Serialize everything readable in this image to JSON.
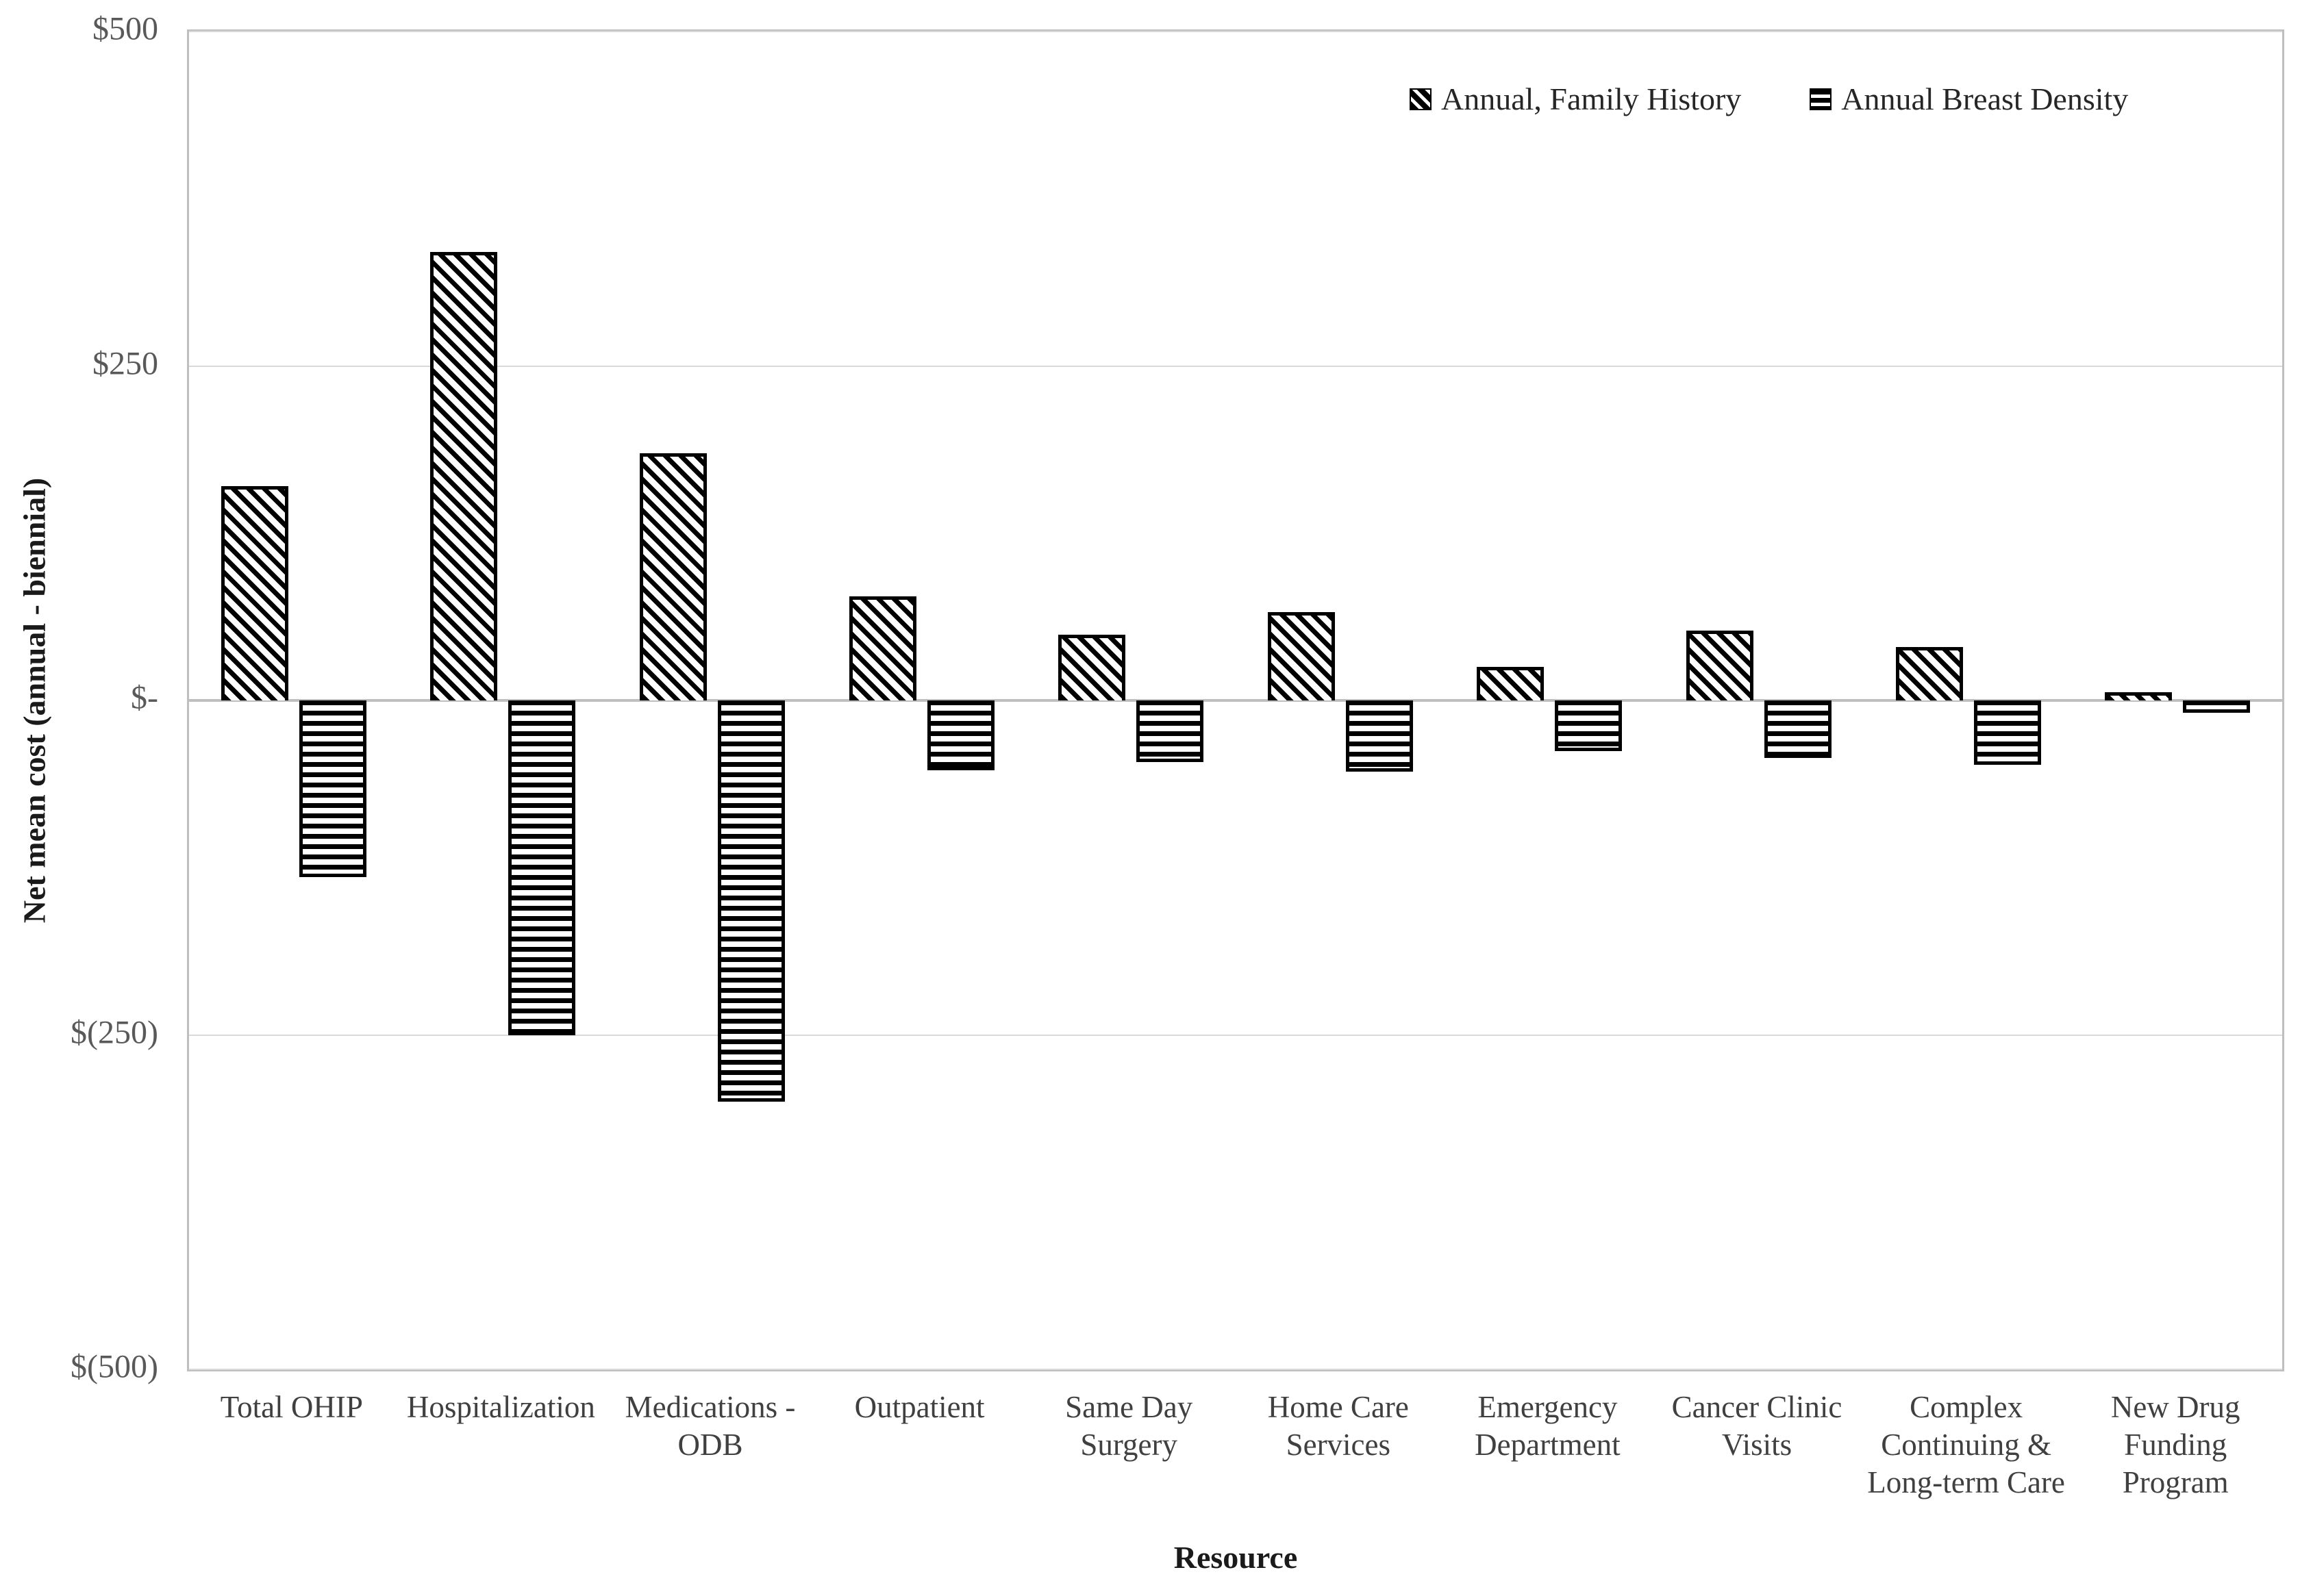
{
  "chart_data": {
    "type": "bar",
    "title": "",
    "xlabel": "Resource",
    "ylabel": "Net mean cost (annual - biennial)",
    "ylim": [
      -500,
      500
    ],
    "grid": "horizontal",
    "legend_position": "top-right",
    "yticks": [
      {
        "label": "$500",
        "value": 500
      },
      {
        "label": "$250",
        "value": 250
      },
      {
        "label": "$-",
        "value": 0
      },
      {
        "label": "$(250)",
        "value": -250
      },
      {
        "label": "$(500)",
        "value": -500
      }
    ],
    "categories": [
      "Total OHIP",
      "Hospitalization",
      "Medications - ODB",
      "Outpatient",
      "Same Day Surgery",
      "Home Care Services",
      "Emergency Department",
      "Cancer Clinic Visits",
      "Complex Continuing & Long-term Care",
      "New Drug Funding Program"
    ],
    "series": [
      {
        "name": "Annual, Family History",
        "pattern": "diagonal-hatch",
        "values": [
          160,
          335,
          185,
          78,
          49,
          66,
          25,
          52,
          40,
          6
        ]
      },
      {
        "name": "Annual Breast Density",
        "pattern": "horizontal-lines",
        "values": [
          -132,
          -250,
          -300,
          -52,
          -46,
          -53,
          -38,
          -43,
          -48,
          -9
        ]
      }
    ]
  },
  "colors": {
    "bar_outline": "#000000",
    "bar_fill": "#ffffff",
    "gridline": "#d9d9d9",
    "axis_line": "#bfbfbf",
    "tick_text": "#595959",
    "label_text": "#404040",
    "title_text": "#1a1a1a"
  }
}
